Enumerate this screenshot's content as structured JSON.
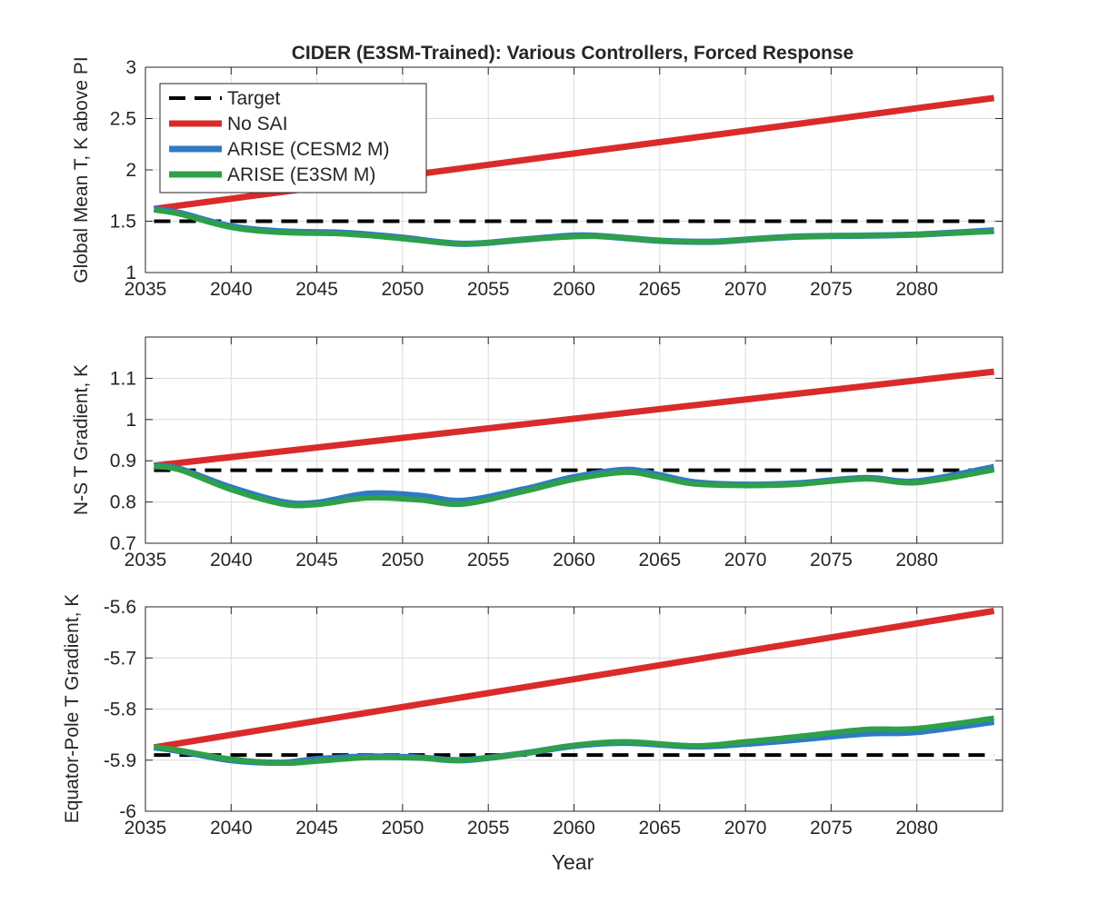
{
  "figure": {
    "title": "CIDER (E3SM-Trained): Various Controllers, Forced Response",
    "xlabel": "Year"
  },
  "legend": {
    "placement": "top-left of top panel",
    "entries": [
      {
        "label": "Target",
        "color": "#000000",
        "style": "dashed"
      },
      {
        "label": "No SAI",
        "color": "#d92b2b",
        "style": "solid"
      },
      {
        "label": "ARISE (CESM2 M)",
        "color": "#2e7bc4",
        "style": "solid"
      },
      {
        "label": "ARISE (E3SM M)",
        "color": "#2ea04a",
        "style": "solid"
      }
    ]
  },
  "colors": {
    "target": "#000000",
    "no_sai": "#d92b2b",
    "arise_cesm2": "#2e7bc4",
    "arise_e3sm": "#2ea04a",
    "grid": "#dcdcdc",
    "axes": "#262626"
  },
  "chart_data": [
    {
      "type": "line",
      "title": "CIDER (E3SM-Trained): Various Controllers, Forced Response",
      "xlabel": "",
      "ylabel": "Global Mean T, K above PI",
      "xlim": [
        2035,
        2085
      ],
      "ylim": [
        1,
        3
      ],
      "xticks": [
        "2035",
        "2040",
        "2045",
        "2050",
        "2055",
        "2060",
        "2065",
        "2070",
        "2075",
        "2080"
      ],
      "yticks": [
        "1",
        "1.5",
        "2",
        "2.5",
        "3"
      ],
      "grid": true,
      "series": [
        {
          "name": "Target",
          "key": "target",
          "x": [
            2035.5,
            2084.5
          ],
          "values": [
            1.5,
            1.5
          ]
        },
        {
          "name": "No SAI",
          "key": "no_sai",
          "x": [
            2035.5,
            2084.5
          ],
          "values": [
            1.62,
            2.7
          ]
        },
        {
          "name": "ARISE (CESM2 M)",
          "key": "arise_cesm2",
          "x": [
            2035.5,
            2037,
            2040,
            2043,
            2046,
            2048,
            2050,
            2053.5,
            2057,
            2060,
            2062,
            2065,
            2068,
            2070,
            2073,
            2077,
            2080,
            2084.5
          ],
          "values": [
            1.62,
            1.58,
            1.45,
            1.4,
            1.39,
            1.37,
            1.34,
            1.28,
            1.32,
            1.36,
            1.35,
            1.31,
            1.3,
            1.32,
            1.35,
            1.36,
            1.37,
            1.41
          ]
        },
        {
          "name": "ARISE (E3SM M)",
          "key": "arise_e3sm",
          "x": [
            2035.5,
            2037,
            2040,
            2043,
            2046,
            2048,
            2050,
            2053.5,
            2057,
            2060,
            2062,
            2065,
            2068,
            2070,
            2073,
            2077,
            2080,
            2084.5
          ],
          "values": [
            1.61,
            1.57,
            1.44,
            1.39,
            1.38,
            1.36,
            1.33,
            1.28,
            1.32,
            1.35,
            1.35,
            1.31,
            1.3,
            1.32,
            1.35,
            1.36,
            1.37,
            1.4
          ]
        }
      ]
    },
    {
      "type": "line",
      "title": "",
      "xlabel": "",
      "ylabel": "N-S T Gradient, K",
      "xlim": [
        2035,
        2085
      ],
      "ylim": [
        0.7,
        1.2
      ],
      "xticks": [
        "2035",
        "2040",
        "2045",
        "2050",
        "2055",
        "2060",
        "2065",
        "2070",
        "2075",
        "2080"
      ],
      "yticks": [
        "0.7",
        "0.8",
        "0.9",
        "1",
        "1.1"
      ],
      "grid": true,
      "series": [
        {
          "name": "Target",
          "key": "target",
          "x": [
            2035.5,
            2084.5
          ],
          "values": [
            0.877,
            0.877
          ]
        },
        {
          "name": "No SAI",
          "key": "no_sai",
          "x": [
            2035.5,
            2084.5
          ],
          "values": [
            0.888,
            1.116
          ]
        },
        {
          "name": "ARISE (CESM2 M)",
          "key": "arise_cesm2",
          "x": [
            2035.5,
            2037,
            2040,
            2043,
            2045,
            2048,
            2051,
            2053.5,
            2057,
            2060,
            2063,
            2065,
            2067,
            2070,
            2073,
            2077,
            2080,
            2084.5
          ],
          "values": [
            0.888,
            0.88,
            0.835,
            0.8,
            0.798,
            0.82,
            0.815,
            0.803,
            0.83,
            0.86,
            0.878,
            0.865,
            0.848,
            0.842,
            0.845,
            0.858,
            0.85,
            0.885
          ]
        },
        {
          "name": "ARISE (E3SM M)",
          "key": "arise_e3sm",
          "x": [
            2035.5,
            2037,
            2040,
            2043,
            2045,
            2048,
            2051,
            2053.5,
            2057,
            2060,
            2063,
            2065,
            2067,
            2070,
            2073,
            2077,
            2080,
            2084.5
          ],
          "values": [
            0.886,
            0.878,
            0.83,
            0.795,
            0.794,
            0.81,
            0.805,
            0.795,
            0.825,
            0.855,
            0.872,
            0.86,
            0.844,
            0.84,
            0.843,
            0.856,
            0.847,
            0.878
          ]
        }
      ]
    },
    {
      "type": "line",
      "title": "",
      "xlabel": "Year",
      "ylabel": "Equator-Pole T Gradient, K",
      "xlim": [
        2035,
        2085
      ],
      "ylim": [
        -6,
        -5.6
      ],
      "xticks": [
        "2035",
        "2040",
        "2045",
        "2050",
        "2055",
        "2060",
        "2065",
        "2070",
        "2075",
        "2080"
      ],
      "yticks": [
        "-6",
        "-5.9",
        "-5.8",
        "-5.7",
        "-5.6"
      ],
      "grid": true,
      "series": [
        {
          "name": "Target",
          "key": "target",
          "x": [
            2035.5,
            2084.5
          ],
          "values": [
            -5.89,
            -5.89
          ]
        },
        {
          "name": "No SAI",
          "key": "no_sai",
          "x": [
            2035.5,
            2084.5
          ],
          "values": [
            -5.875,
            -5.608
          ]
        },
        {
          "name": "ARISE (CESM2 M)",
          "key": "arise_cesm2",
          "x": [
            2035.5,
            2037,
            2040,
            2043,
            2045,
            2048,
            2051,
            2053.5,
            2057,
            2060,
            2063,
            2067,
            2070,
            2073,
            2077,
            2080,
            2084.5
          ],
          "values": [
            -5.875,
            -5.882,
            -5.9,
            -5.905,
            -5.898,
            -5.893,
            -5.895,
            -5.9,
            -5.887,
            -5.872,
            -5.866,
            -5.873,
            -5.868,
            -5.86,
            -5.848,
            -5.845,
            -5.825
          ]
        },
        {
          "name": "ARISE (E3SM M)",
          "key": "arise_e3sm",
          "x": [
            2035.5,
            2037,
            2040,
            2043,
            2045,
            2048,
            2051,
            2053.5,
            2057,
            2060,
            2063,
            2067,
            2070,
            2073,
            2077,
            2080,
            2084.5
          ],
          "values": [
            -5.874,
            -5.881,
            -5.898,
            -5.906,
            -5.902,
            -5.895,
            -5.896,
            -5.9,
            -5.887,
            -5.871,
            -5.864,
            -5.872,
            -5.864,
            -5.854,
            -5.84,
            -5.838,
            -5.818
          ]
        }
      ]
    }
  ]
}
